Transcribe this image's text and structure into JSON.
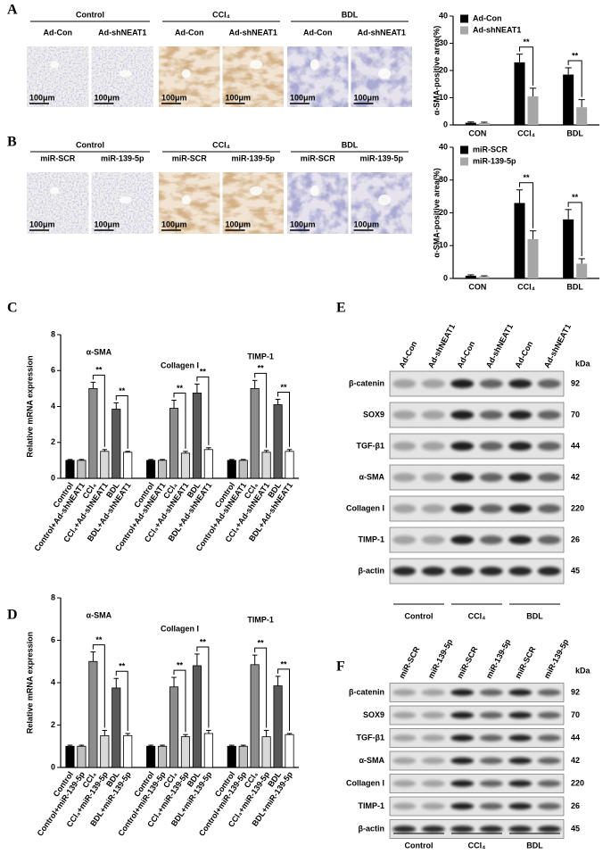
{
  "panel_labels": [
    "A",
    "B",
    "C",
    "D",
    "E",
    "F"
  ],
  "histology": [
    {
      "groups": [
        "Control",
        "CCl₄",
        "BDL"
      ],
      "treatments": [
        "Ad-Con",
        "Ad-shNEAT1"
      ],
      "scale_bar": "100μm"
    },
    {
      "groups": [
        "Control",
        "CCl₄",
        "BDL"
      ],
      "treatments": [
        "miR-SCR",
        "miR-139-5p"
      ],
      "scale_bar": "100μm"
    }
  ],
  "chart_data": [
    {
      "type": "bar",
      "ylabel": "α-SMA-positive area(%)",
      "categories": [
        "CON",
        "CCl₄",
        "BDL"
      ],
      "series": [
        {
          "name": "Ad-Con",
          "color": "#000000",
          "values": [
            0.8,
            23,
            18.5
          ],
          "errors": [
            0.3,
            3,
            2.5
          ]
        },
        {
          "name": "Ad-shNEAT1",
          "color": "#a6a6a6",
          "values": [
            0.7,
            10.5,
            6.5
          ],
          "errors": [
            0.3,
            3,
            2.8
          ]
        }
      ],
      "ylim": [
        0,
        40
      ],
      "yticks": [
        0,
        10,
        20,
        30,
        40
      ],
      "significance": "**",
      "legend": "top-left"
    },
    {
      "type": "bar",
      "ylabel": "α-SMA-positive area(%)",
      "categories": [
        "CON",
        "CCl₄",
        "BDL"
      ],
      "series": [
        {
          "name": "miR-SCR",
          "color": "#000000",
          "values": [
            0.8,
            23,
            18
          ],
          "errors": [
            0.3,
            4,
            3
          ]
        },
        {
          "name": "miR-139-5p",
          "color": "#a6a6a6",
          "values": [
            0.6,
            12,
            4.5
          ],
          "errors": [
            0.2,
            2.5,
            1.5
          ]
        }
      ],
      "ylim": [
        0,
        40
      ],
      "yticks": [
        0,
        10,
        20,
        30,
        40
      ],
      "significance": "**",
      "legend": "top-left"
    },
    {
      "type": "grouped_bar",
      "ylabel": "Relative mRNA expression",
      "categories": [
        "Control",
        "Control+Ad-shNEAT1",
        "CCl₄",
        "CCl₄+Ad-shNEAT1",
        "BDL",
        "BDL+Ad-shNEAT1"
      ],
      "colors": [
        "#000000",
        "#bfbfbf",
        "#8c8c8c",
        "#d9d9d9",
        "#595959",
        "#ffffff"
      ],
      "groups": [
        {
          "name": "α-SMA",
          "values": [
            1,
            1,
            5,
            1.5,
            3.85,
            1.45
          ],
          "errors": [
            0.05,
            0.05,
            0.35,
            0.1,
            0.35,
            0.05
          ]
        },
        {
          "name": "Collagen I",
          "values": [
            1,
            1,
            3.9,
            1.4,
            4.75,
            1.6
          ],
          "errors": [
            0.05,
            0.05,
            0.45,
            0.1,
            0.5,
            0.1
          ]
        },
        {
          "name": "TIMP-1",
          "values": [
            1,
            1,
            5,
            1.45,
            4.1,
            1.5
          ],
          "errors": [
            0.05,
            0.05,
            0.45,
            0.1,
            0.3,
            0.1
          ]
        }
      ],
      "ylim": [
        0,
        8
      ],
      "yticks": [
        0,
        2,
        4,
        6,
        8
      ],
      "significance": "**"
    },
    {
      "type": "grouped_bar",
      "ylabel": "Relative mRNA expression",
      "categories": [
        "Control",
        "Control+miR-139-5p",
        "CCl₄",
        "CCl₄+miR-139-5p",
        "BDL",
        "BDL+miR-139-5p"
      ],
      "colors": [
        "#000000",
        "#bfbfbf",
        "#8c8c8c",
        "#d9d9d9",
        "#595959",
        "#ffffff"
      ],
      "groups": [
        {
          "name": "α-SMA",
          "values": [
            1,
            1,
            5,
            1.5,
            3.75,
            1.5
          ],
          "errors": [
            0.05,
            0.05,
            0.45,
            0.25,
            0.45,
            0.1
          ]
        },
        {
          "name": "Collagen I",
          "values": [
            1,
            1,
            3.8,
            1.45,
            4.8,
            1.6
          ],
          "errors": [
            0.05,
            0.05,
            0.45,
            0.1,
            0.55,
            0.15
          ]
        },
        {
          "name": "TIMP-1",
          "values": [
            1,
            1,
            4.85,
            1.45,
            3.85,
            1.55
          ],
          "errors": [
            0.05,
            0.05,
            0.45,
            0.3,
            0.45,
            0.05
          ]
        }
      ],
      "ylim": [
        0,
        8
      ],
      "yticks": [
        0,
        2,
        4,
        6,
        8
      ],
      "significance": "**"
    }
  ],
  "blots": [
    {
      "lanes": [
        "Ad-Con",
        "Ad-shNEAT1"
      ],
      "groups": [
        "Control",
        "CCl₄",
        "BDL"
      ],
      "proteins": [
        "β-catenin",
        "SOX9",
        "TGF-β1",
        "α-SMA",
        "Collagen I",
        "TIMP-1",
        "β-actin"
      ],
      "unit": "kDa",
      "sizes": [
        92,
        70,
        44,
        42,
        220,
        26,
        45
      ]
    },
    {
      "lanes": [
        "miR-SCR",
        "miR-139-5p"
      ],
      "groups": [
        "Control",
        "CCl₄",
        "BDL"
      ],
      "proteins": [
        "β-catenin",
        "SOX9",
        "TGF-β1",
        "α-SMA",
        "Collagen I",
        "TIMP-1",
        "β-actin"
      ],
      "unit": "kDa",
      "sizes": [
        92,
        70,
        44,
        42,
        220,
        26,
        45
      ]
    }
  ]
}
